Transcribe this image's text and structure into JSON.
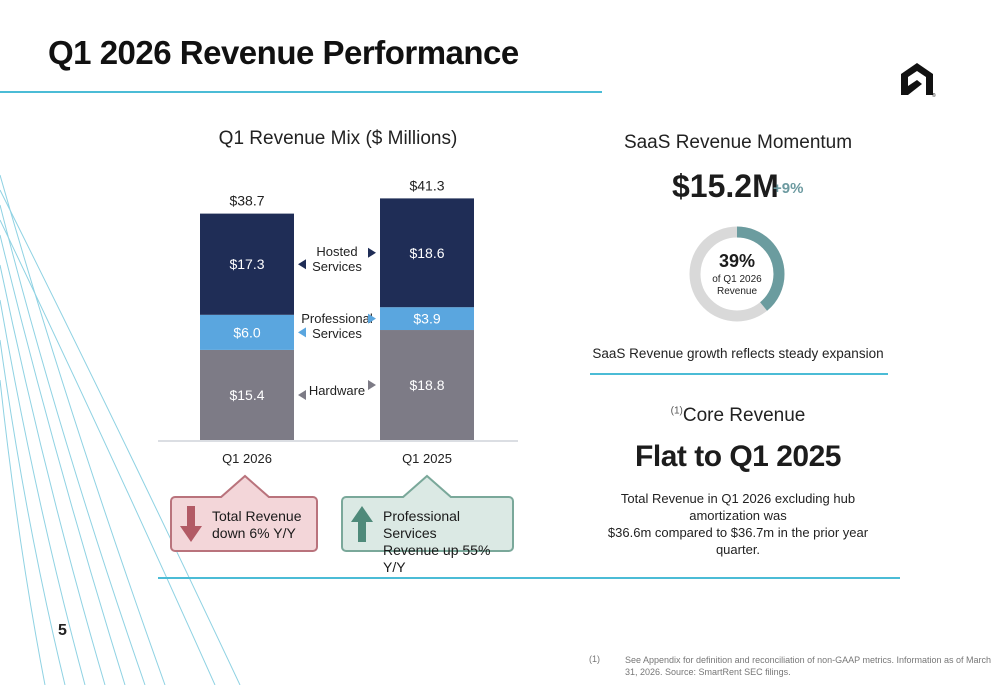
{
  "slide": {
    "title": "Q1 2026 Revenue Performance",
    "page_number": "5"
  },
  "colors": {
    "accent_line": "#4bbcd6",
    "hosted": "#1f2d56",
    "professional": "#5aa6df",
    "hardware": "#7d7b86",
    "down_callout_bg": "#f3d6d9",
    "down_callout_border": "#b9737c",
    "up_callout_bg": "#dbe9e4",
    "up_callout_border": "#7aa89a",
    "donut_fill": "#6b9c9f",
    "donut_track": "#d9d9d9"
  },
  "chart_data": {
    "type": "bar",
    "stacked": true,
    "title": "Q1 Revenue Mix ($ Millions)",
    "categories": [
      "Q1 2026",
      "Q1 2025"
    ],
    "totals": [
      "$38.7",
      "$41.3"
    ],
    "series": [
      {
        "name": "Hardware",
        "values": [
          15.4,
          18.8
        ],
        "labels": [
          "$15.4",
          "$18.8"
        ]
      },
      {
        "name": "Professional Services",
        "values": [
          6.0,
          3.9
        ],
        "labels": [
          "$6.0",
          "$3.9"
        ]
      },
      {
        "name": "Hosted Services",
        "values": [
          17.3,
          18.6
        ],
        "labels": [
          "$17.3",
          "$18.6"
        ]
      }
    ],
    "legend_labels": [
      [
        "Hosted",
        "Services"
      ],
      [
        "Professional",
        "Services"
      ],
      [
        "Hardware"
      ]
    ]
  },
  "callouts": {
    "down": {
      "line1": "Total Revenue",
      "line2": "down 6% Y/Y",
      "icon": "arrow-down-icon"
    },
    "up": {
      "line1": "Professional Services",
      "line2": "Revenue up 55% Y/Y",
      "icon": "arrow-up-icon"
    }
  },
  "saas": {
    "title": "SaaS Revenue Momentum",
    "amount": "$15.2M",
    "growth": "+9%",
    "share_fraction": 0.39,
    "share_pct": "39%",
    "share_line1": "of Q1 2026",
    "share_line2": "Revenue",
    "note": "SaaS Revenue growth reflects steady expansion"
  },
  "core": {
    "superscript": "(1)",
    "title": "Core Revenue",
    "headline": "Flat to Q1 2025",
    "body_line1": "Total Revenue in Q1 2026 excluding hub amortization was",
    "body_line2": "$36.6m compared to $36.7m in the prior year quarter."
  },
  "footnote": {
    "mark": "(1)",
    "text": "See Appendix for definition and reconciliation of non-GAAP metrics.   Information as of March 31, 2026. Source: SmartRent SEC filings."
  }
}
